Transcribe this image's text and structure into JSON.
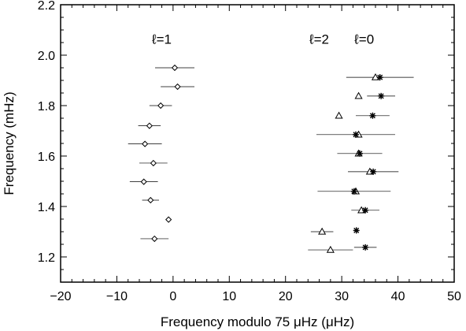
{
  "chart_data": {
    "type": "scatter",
    "title": "",
    "xlabel": "Frequency modulo 75 μHz (μHz)",
    "ylabel": "Frequency  (mHz)",
    "xlim": [
      -20,
      50
    ],
    "ylim": [
      1.1,
      2.2
    ],
    "x_ticks": [
      -20,
      -10,
      0,
      10,
      20,
      30,
      40,
      50
    ],
    "y_ticks": [
      1.2,
      1.4,
      1.6,
      1.8,
      2.0,
      2.2
    ],
    "x_tick_labels": [
      "−20",
      "−10",
      "0",
      "10",
      "20",
      "30",
      "40",
      "50"
    ],
    "y_tick_labels": [
      "1.2",
      "1.4",
      "1.6",
      "1.8",
      "2.0",
      "2.2"
    ],
    "grid": false,
    "annotations": [
      {
        "text": "ℓ=1",
        "x": -2,
        "y": 2.045
      },
      {
        "text": "ℓ=2",
        "x": 26,
        "y": 2.045
      },
      {
        "text": "ℓ=0",
        "x": 34,
        "y": 2.045
      }
    ],
    "series": [
      {
        "marker": "diamond",
        "points": [
          {
            "x": 0.3,
            "y": 1.95,
            "err": 3.5
          },
          {
            "x": 0.8,
            "y": 1.875,
            "err": 3.0
          },
          {
            "x": -2.2,
            "y": 1.8,
            "err": 2.0
          },
          {
            "x": -4.2,
            "y": 1.72,
            "err": 2.0
          },
          {
            "x": -5.0,
            "y": 1.648,
            "err": 3.0
          },
          {
            "x": -3.5,
            "y": 1.572,
            "err": 2.5
          },
          {
            "x": -5.2,
            "y": 1.498,
            "err": 2.5
          },
          {
            "x": -4.0,
            "y": 1.425,
            "err": 1.5
          },
          {
            "x": -0.8,
            "y": 1.348,
            "err": 0
          },
          {
            "x": -3.3,
            "y": 1.272,
            "err": 2.5
          }
        ]
      },
      {
        "marker": "triangle",
        "points": [
          {
            "x": 36.0,
            "y": 1.912,
            "err": 0
          },
          {
            "x": 33.0,
            "y": 1.838,
            "err": 0
          },
          {
            "x": 29.5,
            "y": 1.76,
            "err": 0
          },
          {
            "x": 33.0,
            "y": 1.685,
            "err": 0
          },
          {
            "x": 33.0,
            "y": 1.61,
            "err": 0
          },
          {
            "x": 35.0,
            "y": 1.538,
            "err": 0
          },
          {
            "x": 32.5,
            "y": 1.46,
            "err": 0
          },
          {
            "x": 33.5,
            "y": 1.385,
            "err": 0
          },
          {
            "x": 26.5,
            "y": 1.3,
            "err": 2.0
          },
          {
            "x": 28.0,
            "y": 1.228,
            "err": 4.0
          }
        ]
      },
      {
        "marker": "asterisk",
        "points": [
          {
            "x": 36.8,
            "y": 1.912,
            "err": 6.0
          },
          {
            "x": 37.0,
            "y": 1.838,
            "err": 2.5
          },
          {
            "x": 35.5,
            "y": 1.76,
            "err": 3.0
          },
          {
            "x": 32.5,
            "y": 1.685,
            "err": 7.0
          },
          {
            "x": 33.2,
            "y": 1.61,
            "err": 4.0
          },
          {
            "x": 35.6,
            "y": 1.538,
            "err": 4.5
          },
          {
            "x": 32.2,
            "y": 1.46,
            "err": 6.5
          },
          {
            "x": 34.2,
            "y": 1.385,
            "err": 2.5
          },
          {
            "x": 32.6,
            "y": 1.305,
            "err": 0
          },
          {
            "x": 34.2,
            "y": 1.238,
            "err": 2.0
          }
        ]
      }
    ]
  }
}
